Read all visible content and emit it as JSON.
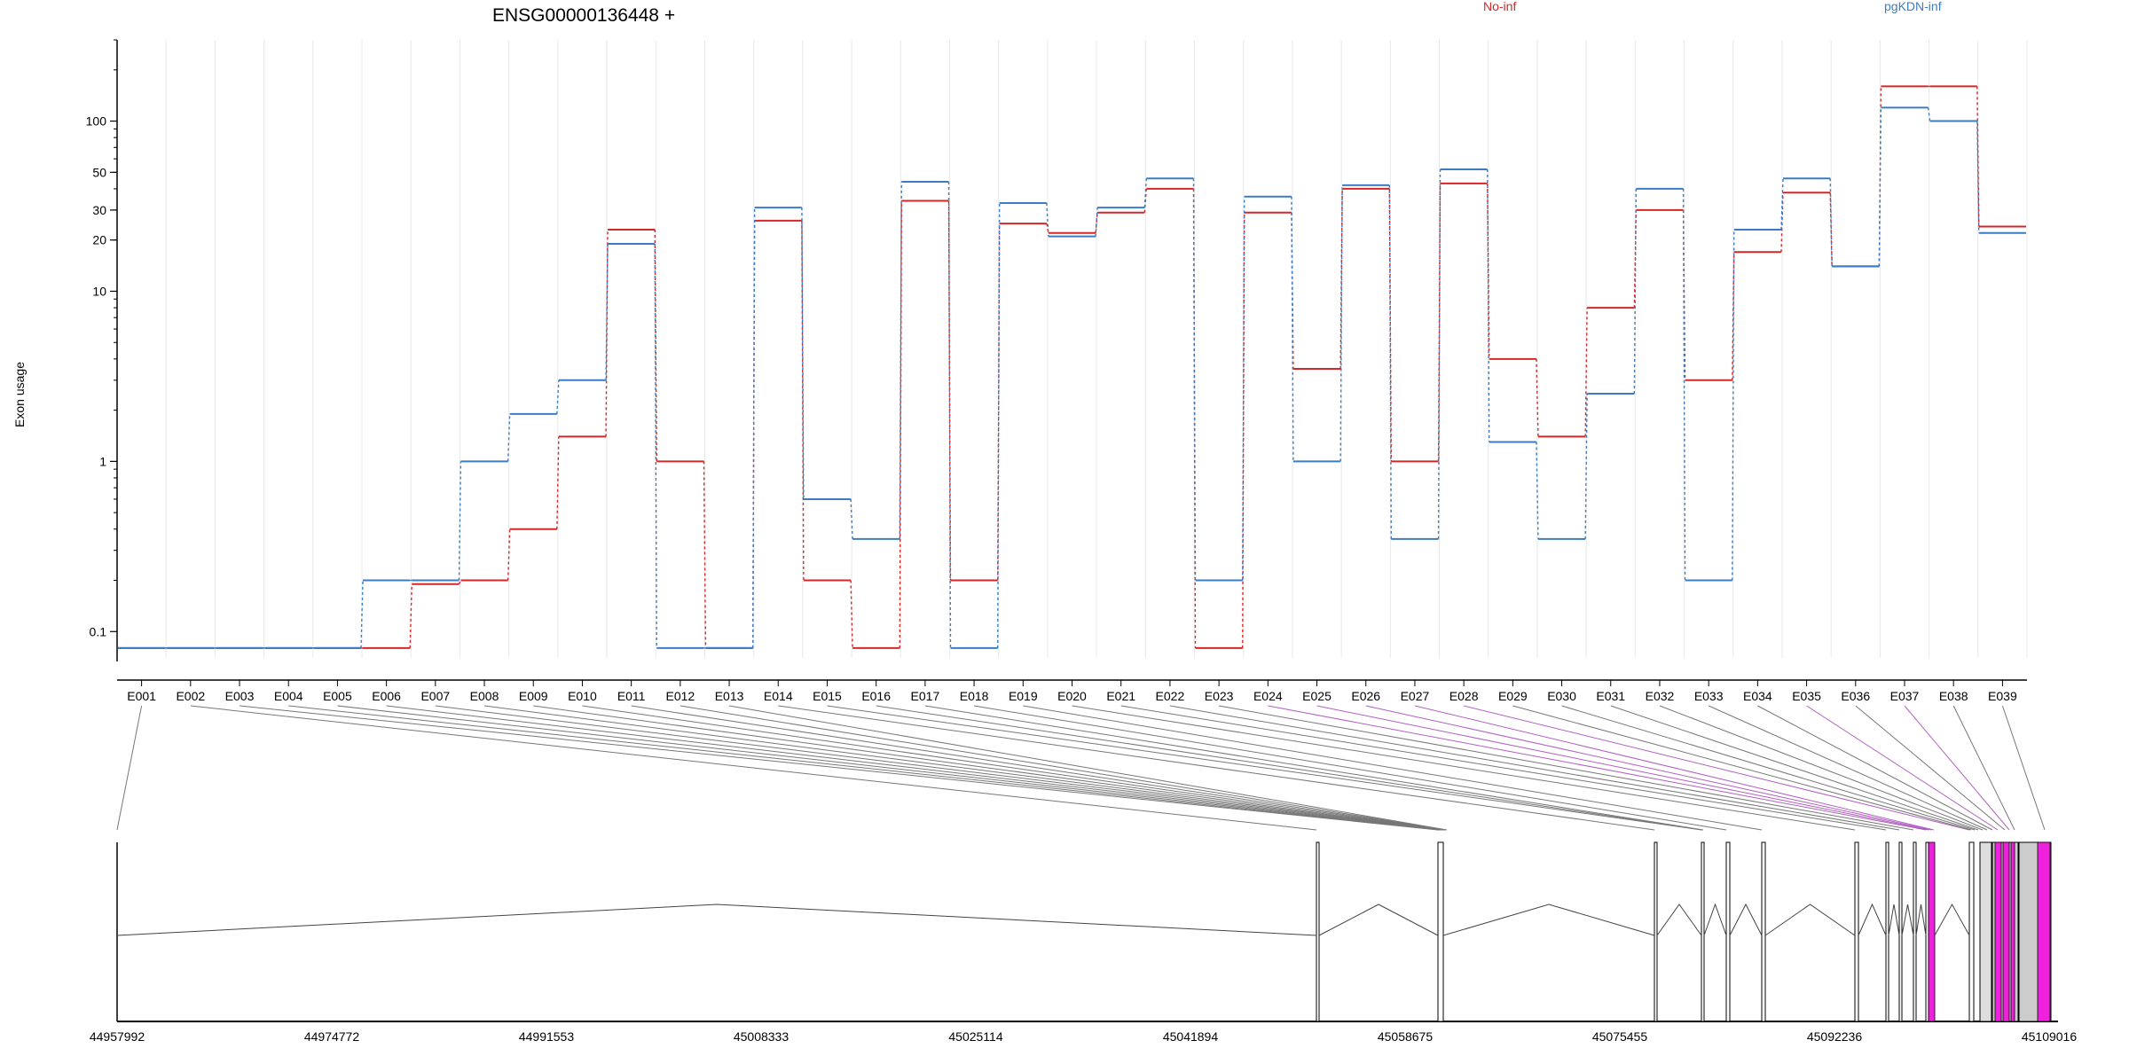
{
  "chart_data": {
    "type": "line",
    "title": "ENSG00000136448 +",
    "xlabel": "",
    "ylabel": "Exon usage",
    "y_scale": "log",
    "y_ticks": [
      0.1,
      1,
      10,
      20,
      30,
      50,
      100
    ],
    "ylim": [
      0.07,
      300
    ],
    "grid": "vertical",
    "legend_placement": "top",
    "categories": [
      "E001",
      "E002",
      "E003",
      "E004",
      "E005",
      "E006",
      "E007",
      "E008",
      "E009",
      "E010",
      "E011",
      "E012",
      "E013",
      "E014",
      "E015",
      "E016",
      "E017",
      "E018",
      "E019",
      "E020",
      "E021",
      "E022",
      "E023",
      "E024",
      "E025",
      "E026",
      "E027",
      "E028",
      "E029",
      "E030",
      "E031",
      "E032",
      "E033",
      "E034",
      "E035",
      "E036",
      "E037",
      "E038",
      "E039"
    ],
    "series": [
      {
        "name": "No-inf",
        "color": "#d62728",
        "values": [
          0.08,
          0.08,
          0.08,
          0.08,
          0.08,
          0.08,
          0.19,
          0.2,
          0.4,
          1.4,
          23,
          1.0,
          0.08,
          26,
          0.2,
          0.08,
          34,
          0.2,
          25,
          22,
          29,
          40,
          0.08,
          29,
          3.5,
          40,
          1.0,
          43,
          4,
          1.4,
          8,
          30,
          3,
          17,
          38,
          14,
          160,
          160,
          24
        ]
      },
      {
        "name": "pgKDN-inf",
        "color": "#3b7dc0",
        "values": [
          0.08,
          0.08,
          0.08,
          0.08,
          0.08,
          0.2,
          0.2,
          1.0,
          1.9,
          3.0,
          19,
          0.08,
          0.08,
          31,
          0.6,
          0.35,
          44,
          0.08,
          33,
          21,
          31,
          46,
          0.2,
          36,
          1.0,
          42,
          0.35,
          52,
          1.3,
          0.35,
          2.5,
          40,
          0.2,
          23,
          46,
          14,
          120,
          100,
          22
        ]
      }
    ]
  },
  "gene_model": {
    "coordinate_labels": [
      "44957992",
      "44974772",
      "44991553",
      "45008333",
      "45025114",
      "45041894",
      "45058675",
      "45075455",
      "45092236",
      "45109016"
    ],
    "highlight_color": "#ee22dd",
    "exon_color": "#cccccc"
  }
}
